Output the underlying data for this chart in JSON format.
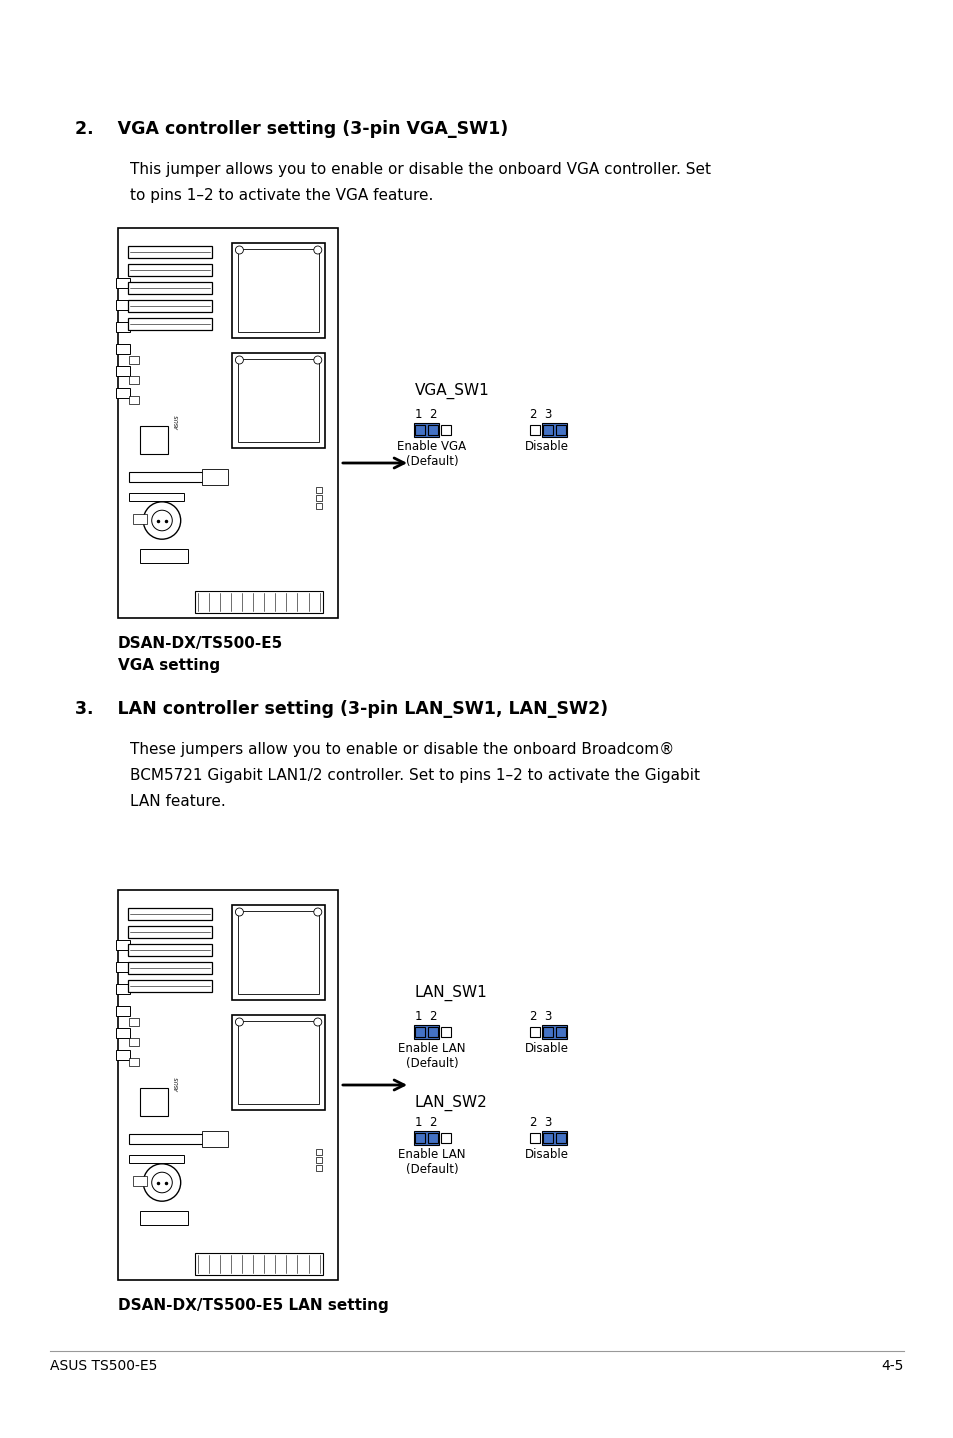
{
  "bg_color": "#ffffff",
  "section2_title": "2.    VGA controller setting (3-pin VGA_SW1)",
  "section2_body1": "This jumper allows you to enable or disable the onboard VGA controller. Set",
  "section2_body2": "to pins 1–2 to activate the VGA feature.",
  "section2_caption1": "DSAN-DX/TS500-E5",
  "section2_caption2": "VGA setting",
  "vga_sw1_label": "VGA_SW1",
  "vga_enable_pins": "1  2",
  "vga_disable_pins": "2  3",
  "vga_enable_label1": "Enable VGA",
  "vga_enable_label2": "(Default)",
  "vga_disable_label": "Disable",
  "section3_title": "3.    LAN controller setting (3-pin LAN_SW1, LAN_SW2)",
  "section3_body1": "These jumpers allow you to enable or disable the onboard Broadcom®",
  "section3_body2": "BCM5721 Gigabit LAN1/2 controller. Set to pins 1–2 to activate the Gigabit",
  "section3_body3": "LAN feature.",
  "section3_caption1": "DSAN-DX/TS500-E5 LAN setting",
  "lan_sw1_label": "LAN_SW1",
  "lan_sw2_label": "LAN_SW2",
  "lan_enable_pins": "1  2",
  "lan_disable_pins": "2  3",
  "lan_enable_label1": "Enable LAN",
  "lan_enable_label2": "(Default)",
  "lan_disable_label": "Disable",
  "footer_left": "ASUS TS500-E5",
  "footer_right": "4-5",
  "jumper_blue": "#4472C4",
  "pin_empty_color": "#ffffff"
}
